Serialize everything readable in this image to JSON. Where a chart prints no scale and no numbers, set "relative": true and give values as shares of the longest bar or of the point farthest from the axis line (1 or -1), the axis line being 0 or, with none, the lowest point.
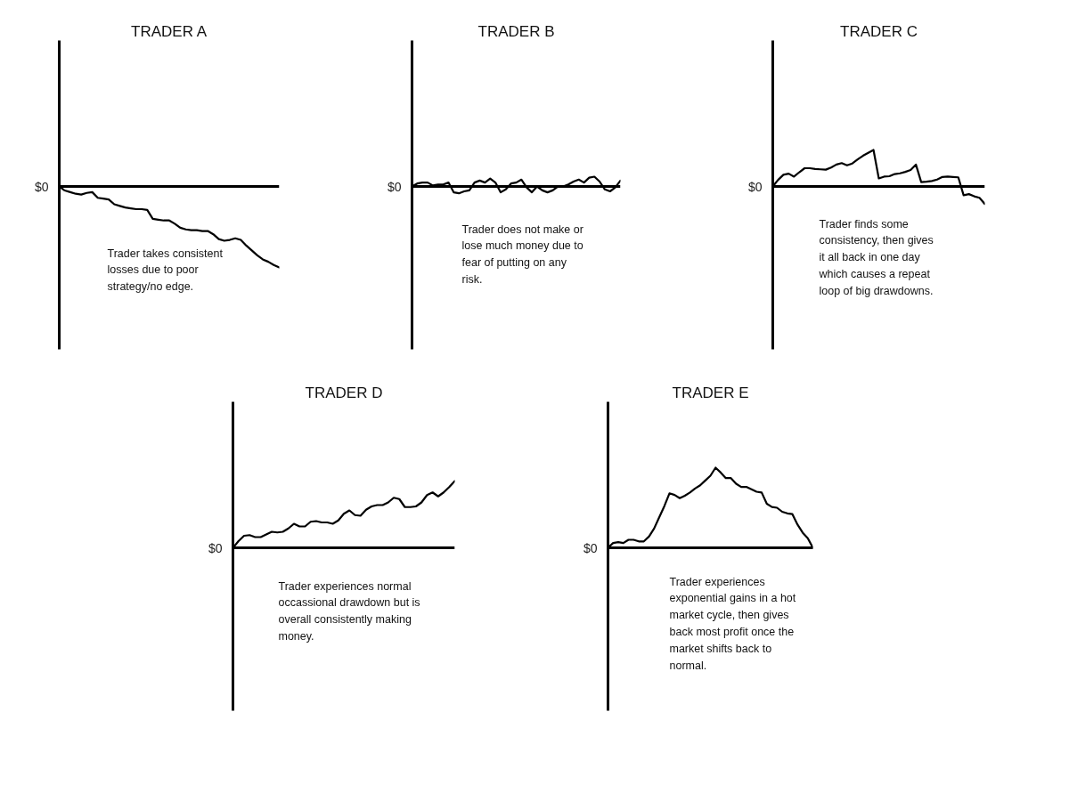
{
  "chart_data": [
    {
      "type": "line",
      "title": "TRADER A",
      "relative": true,
      "color": "#000000",
      "annotations": [
        "$0",
        "Trader takes consistent losses due to poor strategy/no edge."
      ],
      "categories": [
        null,
        null,
        null,
        null,
        null,
        null,
        null,
        null,
        null,
        null,
        null,
        null,
        null,
        null,
        null,
        null,
        null,
        null,
        null,
        null,
        null,
        null,
        null,
        null,
        null,
        null,
        null,
        null,
        null,
        null,
        null,
        null,
        null,
        null,
        null,
        null,
        null,
        null,
        null,
        null,
        null
      ],
      "values": [
        0,
        -0.05,
        -0.07,
        -0.09,
        -0.1,
        -0.08,
        -0.07,
        -0.14,
        -0.15,
        -0.16,
        -0.22,
        -0.24,
        -0.26,
        -0.27,
        -0.28,
        -0.28,
        -0.29,
        -0.4,
        -0.41,
        -0.42,
        -0.42,
        -0.46,
        -0.51,
        -0.53,
        -0.54,
        -0.54,
        -0.55,
        -0.55,
        -0.59,
        -0.65,
        -0.67,
        -0.66,
        -0.64,
        -0.66,
        -0.73,
        -0.79,
        -0.85,
        -0.9,
        -0.93,
        -0.97,
        -1.0
      ]
    },
    {
      "type": "line",
      "title": "TRADER B",
      "relative": true,
      "color": "#000000",
      "annotations": [
        "$0",
        "Trader does not make or lose much money due to fear of putting on any risk."
      ],
      "categories": [
        null,
        null,
        null,
        null,
        null,
        null,
        null,
        null,
        null,
        null,
        null,
        null,
        null,
        null,
        null,
        null,
        null,
        null,
        null,
        null,
        null,
        null,
        null,
        null,
        null,
        null,
        null,
        null,
        null,
        null,
        null,
        null,
        null,
        null,
        null,
        null,
        null,
        null,
        null,
        null,
        null
      ],
      "values": [
        0,
        0.3,
        0.4,
        0.4,
        0.1,
        0.2,
        0.2,
        0.4,
        -0.6,
        -0.7,
        -0.5,
        -0.4,
        0.4,
        0.6,
        0.4,
        0.8,
        0.4,
        -0.6,
        -0.3,
        0.3,
        0.4,
        0.7,
        -0.1,
        -0.6,
        0,
        -0.4,
        -0.6,
        -0.4,
        0,
        0,
        0.2,
        0.5,
        0.7,
        0.4,
        0.9,
        1,
        0.5,
        -0.3,
        -0.5,
        -0.1,
        0.6
      ]
    },
    {
      "type": "line",
      "title": "TRADER C",
      "relative": true,
      "color": "#000000",
      "annotations": [
        "$0",
        "Trader finds some consistency, then gives it all back in one day which causes a repeat loop of big drawdowns."
      ],
      "categories": [
        null,
        null,
        null,
        null,
        null,
        null,
        null,
        null,
        null,
        null,
        null,
        null,
        null,
        null,
        null,
        null,
        null,
        null,
        null,
        null,
        null,
        null,
        null,
        null,
        null,
        null,
        null,
        null,
        null,
        null,
        null,
        null,
        null,
        null,
        null,
        null,
        null,
        null,
        null,
        null,
        null
      ],
      "values": [
        0,
        0.18,
        0.32,
        0.35,
        0.27,
        0.39,
        0.5,
        0.5,
        0.48,
        0.47,
        0.46,
        0.52,
        0.6,
        0.64,
        0.58,
        0.63,
        0.74,
        0.84,
        0.92,
        1.0,
        0.22,
        0.27,
        0.28,
        0.34,
        0.36,
        0.4,
        0.45,
        0.6,
        0.12,
        0.13,
        0.15,
        0.19,
        0.26,
        0.27,
        0.26,
        0.25,
        -0.24,
        -0.21,
        -0.27,
        -0.31,
        -0.48
      ]
    },
    {
      "type": "line",
      "title": "TRADER D",
      "relative": true,
      "color": "#000000",
      "annotations": [
        "$0",
        "Trader experiences normal occassional drawdown but is overall consistently making money."
      ],
      "categories": [
        null,
        null,
        null,
        null,
        null,
        null,
        null,
        null,
        null,
        null,
        null,
        null,
        null,
        null,
        null,
        null,
        null,
        null,
        null,
        null,
        null,
        null,
        null,
        null,
        null,
        null,
        null,
        null,
        null,
        null,
        null,
        null,
        null,
        null,
        null,
        null,
        null,
        null,
        null,
        null,
        null
      ],
      "values": [
        0,
        0.1,
        0.18,
        0.19,
        0.16,
        0.16,
        0.2,
        0.24,
        0.23,
        0.24,
        0.29,
        0.36,
        0.32,
        0.32,
        0.39,
        0.4,
        0.38,
        0.38,
        0.36,
        0.41,
        0.51,
        0.56,
        0.49,
        0.48,
        0.57,
        0.62,
        0.64,
        0.64,
        0.68,
        0.75,
        0.73,
        0.61,
        0.61,
        0.62,
        0.68,
        0.79,
        0.83,
        0.77,
        0.83,
        0.91,
        1.0
      ]
    },
    {
      "type": "line",
      "title": "TRADER E",
      "relative": true,
      "color": "#000000",
      "annotations": [
        "$0",
        "Trader experiences exponential gains in a hot market cycle, then gives back most profit once the market shifts back to normal."
      ],
      "categories": [
        null,
        null,
        null,
        null,
        null,
        null,
        null,
        null,
        null,
        null,
        null,
        null,
        null,
        null,
        null,
        null,
        null,
        null,
        null,
        null,
        null,
        null,
        null,
        null,
        null,
        null,
        null,
        null,
        null,
        null,
        null,
        null,
        null,
        null,
        null,
        null,
        null,
        null,
        null,
        null,
        null
      ],
      "values": [
        0,
        0.06,
        0.07,
        0.06,
        0.1,
        0.1,
        0.08,
        0.08,
        0.14,
        0.24,
        0.38,
        0.52,
        0.68,
        0.66,
        0.62,
        0.65,
        0.69,
        0.74,
        0.78,
        0.84,
        0.9,
        1.0,
        0.94,
        0.87,
        0.87,
        0.8,
        0.76,
        0.76,
        0.73,
        0.7,
        0.69,
        0.55,
        0.51,
        0.5,
        0.45,
        0.43,
        0.42,
        0.29,
        0.19,
        0.12,
        0
      ]
    }
  ]
}
